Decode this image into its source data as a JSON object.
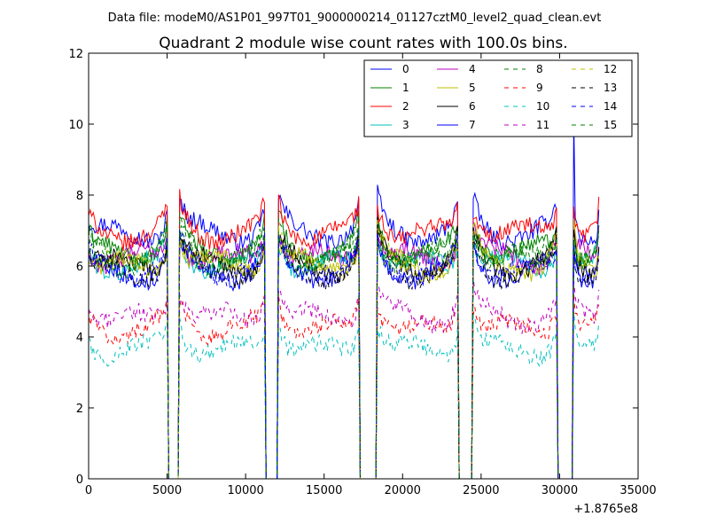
{
  "chart_data": {
    "type": "line",
    "suptitle": "Data file: modeM0/AS1P01_997T01_9000000214_01127cztM0_level2_quad_clean.evt",
    "title": "Quadrant 2 module wise count rates with 100.0s bins.",
    "xlabel": "",
    "ylabel": "",
    "x_offset_label": "+1.8765e8",
    "xlim": [
      0,
      35000
    ],
    "ylim": [
      0,
      12
    ],
    "xticks": [
      0,
      5000,
      10000,
      15000,
      20000,
      25000,
      30000,
      35000
    ],
    "xtick_labels": [
      "0",
      "5000",
      "10000",
      "15000",
      "20000",
      "25000",
      "30000",
      "35000"
    ],
    "yticks": [
      0,
      2,
      4,
      6,
      8,
      10,
      12
    ],
    "ytick_labels": [
      "0",
      "2",
      "4",
      "6",
      "8",
      "10",
      "12"
    ],
    "legend_position": "top-right",
    "bin_width_s": 100,
    "gti_segments": [
      {
        "start": 0,
        "end": 5000
      },
      {
        "start": 5800,
        "end": 11200
      },
      {
        "start": 12100,
        "end": 17200
      },
      {
        "start": 18400,
        "end": 23500
      },
      {
        "start": 24500,
        "end": 29800
      },
      {
        "start": 30900,
        "end": 32500
      }
    ],
    "gap_value": 0,
    "peak_value": 10.2,
    "series": [
      {
        "name": "0",
        "color": "#0000ff",
        "dash": "solid",
        "base": 6.9
      },
      {
        "name": "1",
        "color": "#008000",
        "dash": "solid",
        "base": 6.4
      },
      {
        "name": "2",
        "color": "#ff0000",
        "dash": "solid",
        "base": 6.9
      },
      {
        "name": "3",
        "color": "#00bfbf",
        "dash": "solid",
        "base": 6.0
      },
      {
        "name": "4",
        "color": "#bf00bf",
        "dash": "solid",
        "base": 6.2
      },
      {
        "name": "5",
        "color": "#bfbf00",
        "dash": "solid",
        "base": 6.0
      },
      {
        "name": "6",
        "color": "#000000",
        "dash": "solid",
        "base": 6.0
      },
      {
        "name": "7",
        "color": "#0000ff",
        "dash": "solid",
        "base": 5.8
      },
      {
        "name": "8",
        "color": "#008000",
        "dash": "dashed",
        "base": 6.3
      },
      {
        "name": "9",
        "color": "#ff0000",
        "dash": "dashed",
        "base": 4.2
      },
      {
        "name": "10",
        "color": "#00bfbf",
        "dash": "dashed",
        "base": 3.6
      },
      {
        "name": "11",
        "color": "#bf00bf",
        "dash": "dashed",
        "base": 4.5
      },
      {
        "name": "12",
        "color": "#bfbf00",
        "dash": "dashed",
        "base": 6.0
      },
      {
        "name": "13",
        "color": "#000000",
        "dash": "dashed",
        "base": 5.8
      },
      {
        "name": "14",
        "color": "#0000ff",
        "dash": "dashed",
        "base": 5.9
      },
      {
        "name": "15",
        "color": "#008000",
        "dash": "dashed",
        "base": 6.1
      }
    ]
  }
}
